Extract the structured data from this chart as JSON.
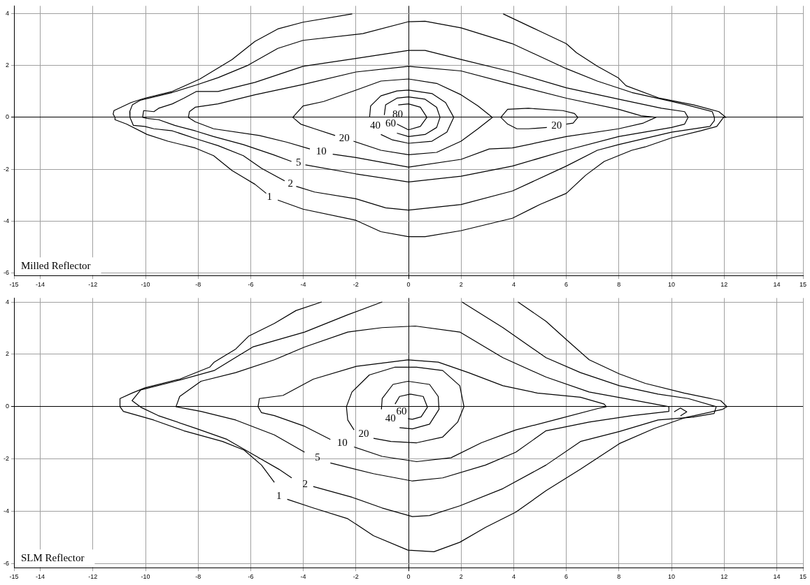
{
  "chart_data": [
    {
      "type": "line",
      "title": "Milled Reflector",
      "xlim": [
        -15,
        15
      ],
      "ylim": [
        -6.1,
        4.3
      ],
      "xticks": [
        -15,
        -14,
        -12,
        -10,
        -8,
        -6,
        -4,
        -2,
        0,
        2,
        4,
        6,
        8,
        10,
        12,
        14,
        15
      ],
      "yticks": [
        -6,
        -4,
        -2,
        0,
        2,
        4
      ],
      "grid": true,
      "legend": false,
      "marker": "none",
      "line_style": "solid",
      "series": [
        {
          "color": "#000000",
          "x": [
            -2.14,
            -4.01,
            -4.97,
            -5.84,
            -6.71,
            -7.93,
            -8.98,
            -10.03,
            -10.55,
            -11.2,
            -11.23,
            -11.16,
            -11.16,
            -10.72,
            -9.94,
            -9.15,
            -8.11,
            -7.41,
            -6.71,
            -5.84,
            -5.41
          ],
          "values": [
            3.99,
            3.67,
            3.41,
            2.93,
            2.23,
            1.48,
            1.0,
            0.74,
            0.57,
            0.26,
            0.13,
            0,
            -0.09,
            -0.26,
            -0.66,
            -0.92,
            -1.18,
            -1.48,
            -2.05,
            -2.58,
            -2.93
          ]
        },
        {
          "name": "1",
          "color": "#000000",
          "x": [
            -4.97,
            -4.01,
            -2.0,
            -1.05,
            0,
            0.63,
            2,
            3.95,
            5.0,
            6,
            6.74,
            7.44,
            8.49,
            9.0,
            10,
            11.11,
            11.72,
            11.98,
            12.07,
            11.8,
            10.85,
            9.54,
            8.27,
            7.97,
            7.18,
            6.39,
            6,
            5.0,
            3.6
          ],
          "values": [
            -3.19,
            -3.54,
            -3.97,
            -4.41,
            -4.6,
            -4.6,
            -4.37,
            -3.89,
            -3.36,
            -2.93,
            -2.23,
            -1.7,
            -1.27,
            -1.14,
            -0.79,
            -0.52,
            -0.35,
            0,
            0,
            0.22,
            0.48,
            0.74,
            1.22,
            1.53,
            1.97,
            2.49,
            2.84,
            3.32,
            3.99
          ]
        },
        {
          "name": "2",
          "color": "#000000",
          "x": [
            -4.27,
            -3.57,
            -2.0,
            -0.87,
            0,
            2,
            3.95,
            6,
            7.18,
            7.99,
            10,
            11.46,
            11.63,
            11.63,
            11.55,
            10.58,
            9.8,
            8.49,
            7.18,
            6,
            3.95,
            2,
            0.63,
            0,
            -1.74,
            -4.01,
            -4.97,
            -6.1,
            -7.24,
            -8.06,
            -8.98,
            -10.2,
            -10.5,
            -10.6,
            -10.59,
            -10.46,
            -10.03,
            -9.68,
            -8.98,
            -8.06,
            -7.24,
            -6.28,
            -5.58,
            -4.71
          ],
          "values": [
            -2.66,
            -2.88,
            -3.14,
            -3.49,
            -3.58,
            -3.36,
            -2.84,
            -1.88,
            -1.27,
            -1.05,
            -0.57,
            -0.35,
            -0.13,
            0,
            0.22,
            0.48,
            0.66,
            0.96,
            1.4,
            1.88,
            2.84,
            3.45,
            3.71,
            3.69,
            3.23,
            2.97,
            2.66,
            2.01,
            1.53,
            1.25,
            0.96,
            0.66,
            0.48,
            0.22,
            0,
            -0.31,
            -0.35,
            -0.44,
            -0.52,
            -0.83,
            -1.09,
            -1.48,
            -1.97,
            -2.45
          ]
        },
        {
          "name": "5",
          "color": "#000000",
          "x": [
            -3.92,
            -2.0,
            0,
            2,
            3.95,
            6,
            7.99,
            10,
            10.5,
            10.63,
            10.5,
            9.62,
            7.99,
            6,
            3.95,
            2,
            0.63,
            0,
            -2.0,
            -4.01,
            -5.84,
            -7.24,
            -8.06,
            -8.54,
            -8.98,
            -9.5,
            -9.68,
            -10.07,
            -10.11,
            -9.94,
            -9.5,
            -8.89,
            -8.11,
            -7.41,
            -6.28,
            -5.14,
            -4.45
          ],
          "values": [
            -1.83,
            -2.18,
            -2.49,
            -2.27,
            -1.88,
            -1.27,
            -0.74,
            -0.39,
            -0.26,
            0,
            0.22,
            0.35,
            0.7,
            1.14,
            1.75,
            2.23,
            2.58,
            2.58,
            2.27,
            1.97,
            1.35,
            1.0,
            1.0,
            0.74,
            0.52,
            0.35,
            0.22,
            0.26,
            0,
            -0.04,
            -0.09,
            -0.31,
            -0.52,
            -0.74,
            -1.05,
            -1.44,
            -1.7
          ]
        },
        {
          "name": "10",
          "color": "#000000",
          "x": [
            -2.88,
            -2.0,
            0,
            2,
            3.07,
            3.95,
            6,
            7.99,
            8.93,
            9.41,
            8.84,
            7.99,
            6,
            3.95,
            2,
            0,
            -2,
            -4.01,
            -5.84,
            -7.24,
            -8.11,
            -8.33,
            -8.37,
            -8.11,
            -7.41,
            -5.67,
            -4.62,
            -3.75
          ],
          "values": [
            -1.42,
            -1.55,
            -1.92,
            -1.62,
            -1.22,
            -1.18,
            -0.74,
            -0.44,
            -0.22,
            0,
            0.06,
            0.31,
            0.74,
            1.27,
            1.79,
            1.97,
            1.75,
            1.27,
            0.87,
            0.52,
            0.39,
            0.22,
            0,
            -0.17,
            -0.44,
            -0.7,
            -0.96,
            -1.22
          ]
        },
        {
          "name": "20",
          "color": "#000000",
          "x": [
            -2.09,
            -1.05,
            0,
            1.07,
            2,
            2.64,
            3.19,
            2.64,
            2,
            1.07,
            0,
            -1.05,
            -2.0,
            -3.23,
            -4.01,
            -4.4,
            -4.1,
            -3.57,
            -2.79
          ],
          "values": [
            -0.92,
            -1.27,
            -1.44,
            -1.35,
            -0.92,
            -0.44,
            0,
            0.44,
            0.87,
            1.31,
            1.48,
            1.4,
            1.05,
            0.61,
            0.44,
            0,
            -0.26,
            -0.44,
            -0.7
          ]
        },
        {
          "name": "20",
          "color": "#000000",
          "x": [
            5.26,
            4.56,
            4.12,
            3.77,
            3.51,
            3.77,
            4.56,
            5.87,
            6.31,
            6.44,
            6.26,
            6.0
          ],
          "values": [
            -0.39,
            -0.44,
            -0.44,
            -0.26,
            0,
            0.31,
            0.35,
            0.26,
            0.15,
            0,
            -0.22,
            -0.26
          ]
        },
        {
          "name": "40",
          "color": "#000000",
          "x": [
            -1.05,
            -0.61,
            0,
            0.89,
            1.46,
            1.72,
            1.41,
            0.89,
            0,
            -0.44,
            -1.05,
            -1.44,
            -1.48
          ],
          "values": [
            -0.66,
            -0.87,
            -1.0,
            -0.92,
            -0.57,
            0,
            0.57,
            0.92,
            1.05,
            1.02,
            0.83,
            0.44,
            0
          ]
        },
        {
          "name": "60",
          "color": "#000000",
          "x": [
            -0.44,
            0,
            0.63,
            1.07,
            1.2,
            1.07,
            0.63,
            0,
            -0.44,
            -0.87,
            -0.92
          ],
          "values": [
            -0.61,
            -0.74,
            -0.66,
            -0.39,
            0,
            0.39,
            0.7,
            0.79,
            0.74,
            0.48,
            0.09
          ]
        },
        {
          "name": "80",
          "color": "#000000",
          "x": [
            -0.44,
            0,
            0.45,
            0.7,
            0.45,
            0,
            -0.39
          ],
          "values": [
            -0.26,
            -0.48,
            -0.35,
            0,
            0.39,
            0.52,
            0.48
          ]
        }
      ]
    },
    {
      "type": "line",
      "title": "SLM Reflector",
      "xlim": [
        -15,
        15
      ],
      "ylim": [
        -6.15,
        4.15
      ],
      "xticks": [
        -15,
        -14,
        -12,
        -10,
        -8,
        -6,
        -4,
        -2,
        0,
        2,
        4,
        6,
        8,
        10,
        12,
        14,
        15
      ],
      "yticks": [
        -6,
        -4,
        -2,
        0,
        2,
        4
      ],
      "grid": true,
      "legend": false,
      "marker": "none",
      "line_style": "solid",
      "series": [
        {
          "color": "#000000",
          "x": [
            -3.3,
            -4.28,
            -5.1,
            -6.08,
            -6.57,
            -7.39,
            -7.56,
            -8.7,
            -10.02,
            -10.51,
            -10.97,
            -10.97,
            -10.84,
            -9.69,
            -8.54,
            -7.07,
            -6.25,
            -5.59,
            -5.1
          ],
          "values": [
            4.0,
            3.67,
            3.18,
            2.69,
            2.2,
            1.7,
            1.51,
            1.05,
            0.72,
            0.52,
            0.31,
            0,
            -0.18,
            -0.51,
            -0.92,
            -1.33,
            -1.66,
            -2.23,
            -2.89
          ]
        },
        {
          "name": "1",
          "color": "#000000",
          "x": [
            -4.61,
            -3.62,
            -2.31,
            -1.33,
            -0.02,
            0.97,
            1.95,
            2.93,
            4.08,
            5.23,
            6.54,
            8.02,
            9.33,
            10.48,
            11.95,
            12.11,
            11.87,
            10.48,
            9.0,
            8.02,
            6.87,
            6.05,
            5.23,
            4.16
          ],
          "values": [
            -3.54,
            -3.87,
            -4.28,
            -4.93,
            -5.48,
            -5.54,
            -5.18,
            -4.61,
            -4.03,
            -3.21,
            -2.39,
            -1.41,
            -0.84,
            -0.43,
            -0.1,
            0,
            0.23,
            0.52,
            0.89,
            1.25,
            1.79,
            2.52,
            3.26,
            4.0
          ]
        },
        {
          "color": "#000000",
          "x": [
            -1.0,
            -2.31,
            -3.95,
            -5.92,
            -7.39,
            -8.87,
            -10.18,
            -10.51,
            -10.18,
            -9.52,
            -8.05,
            -6.9,
            -5.92,
            -4.93,
            -4.44
          ],
          "values": [
            4.0,
            3.51,
            2.85,
            2.28,
            1.38,
            0.97,
            0.64,
            0.23,
            -0.02,
            -0.34,
            -0.84,
            -1.25,
            -1.82,
            -2.39,
            -2.72
          ]
        },
        {
          "name": "2",
          "color": "#000000",
          "x": [
            -3.62,
            -2.15,
            -1.0,
            0.15,
            0.8,
            1.95,
            3.59,
            5.23,
            6.54,
            8.02,
            9.49,
            10.8,
            11.62,
            11.7,
            10.64,
            9.49,
            8.02,
            6.54,
            5.23,
            3.59,
            2.03
          ],
          "values": [
            -3.05,
            -3.46,
            -3.87,
            -4.2,
            -4.16,
            -3.79,
            -3.13,
            -2.23,
            -1.33,
            -0.95,
            -0.51,
            -0.4,
            -0.26,
            0,
            0.31,
            0.48,
            0.8,
            1.3,
            1.87,
            3.02,
            4.0
          ]
        },
        {
          "name": "5",
          "color": "#000000",
          "x": [
            -2.97,
            -1.33,
            0.15,
            1.3,
            2.93,
            4.08,
            5.23,
            6.87,
            8.51,
            9.9,
            9.9,
            8.51,
            6.87,
            5.23,
            3.59,
            1.95,
            0.26,
            -1.0,
            -2.31,
            -3.95,
            -5.1,
            -6.57,
            -7.89,
            -8.7,
            -8.84,
            -7.89,
            -6.57,
            -5.1,
            -3.95
          ],
          "values": [
            -2.15,
            -2.56,
            -2.84,
            -2.72,
            -2.23,
            -1.74,
            -0.92,
            -0.59,
            -0.34,
            -0.18,
            0,
            0.26,
            0.56,
            1.13,
            1.87,
            2.85,
            3.08,
            3.02,
            2.85,
            2.28,
            1.79,
            1.3,
            0.97,
            0.39,
            0,
            -0.18,
            -0.51,
            -1.08,
            -1.74
          ]
        },
        {
          "name": "10",
          "color": "#000000",
          "x": [
            -2.07,
            -1.0,
            0.31,
            1.62,
            2.77,
            4.08,
            5.72,
            7.2,
            7.52,
            7.44,
            6.54,
            4.9,
            3.59,
            2.28,
            1.13,
            -0.02,
            -1.98,
            -3.62,
            -4.77,
            -5.67,
            -5.72,
            -5.59,
            -5.1,
            -3.95,
            -2.97
          ],
          "values": [
            -1.54,
            -1.9,
            -2.1,
            -1.95,
            -1.38,
            -0.89,
            -0.46,
            -0.07,
            0,
            0.1,
            0.36,
            0.52,
            0.8,
            1.3,
            1.7,
            1.79,
            1.54,
            1.05,
            0.43,
            0.31,
            0,
            -0.23,
            -0.34,
            -0.75,
            -1.25
          ]
        },
        {
          "name": "20",
          "color": "#000000",
          "x": [
            -1.33,
            -0.67,
            0.31,
            1.3,
            1.87,
            2.11,
            1.95,
            1.3,
            0.31,
            -0.51,
            -1.49,
            -2.15,
            -2.36,
            -2.31,
            -2.07
          ],
          "values": [
            -1.21,
            -1.33,
            -1.38,
            -1.16,
            -0.59,
            0,
            0.8,
            1.38,
            1.51,
            1.51,
            1.21,
            0.56,
            0,
            -0.51,
            -0.89
          ]
        },
        {
          "name": "40",
          "color": "#000000",
          "x": [
            -0.34,
            0.15,
            0.8,
            1.16,
            1.13,
            0.8,
            -0.02,
            -0.59,
            -1.0,
            -1.03
          ],
          "values": [
            -0.8,
            -0.85,
            -0.67,
            -0.1,
            0.39,
            0.85,
            0.97,
            0.85,
            0.31,
            -0.1
          ]
        },
        {
          "name": "60",
          "color": "#000000",
          "x": [
            -0.02,
            0.15,
            0.48,
            0.72,
            0.56,
            0.07,
            -0.34,
            -0.51
          ],
          "values": [
            -0.46,
            -0.48,
            -0.39,
            -0.02,
            0.39,
            0.48,
            0.39,
            0.1
          ]
        },
        {
          "color": "#000000",
          "x": [
            10.1,
            10.34,
            10.58,
            10.34
          ],
          "values": [
            -0.2,
            -0.05,
            -0.2,
            -0.35
          ]
        }
      ]
    }
  ]
}
